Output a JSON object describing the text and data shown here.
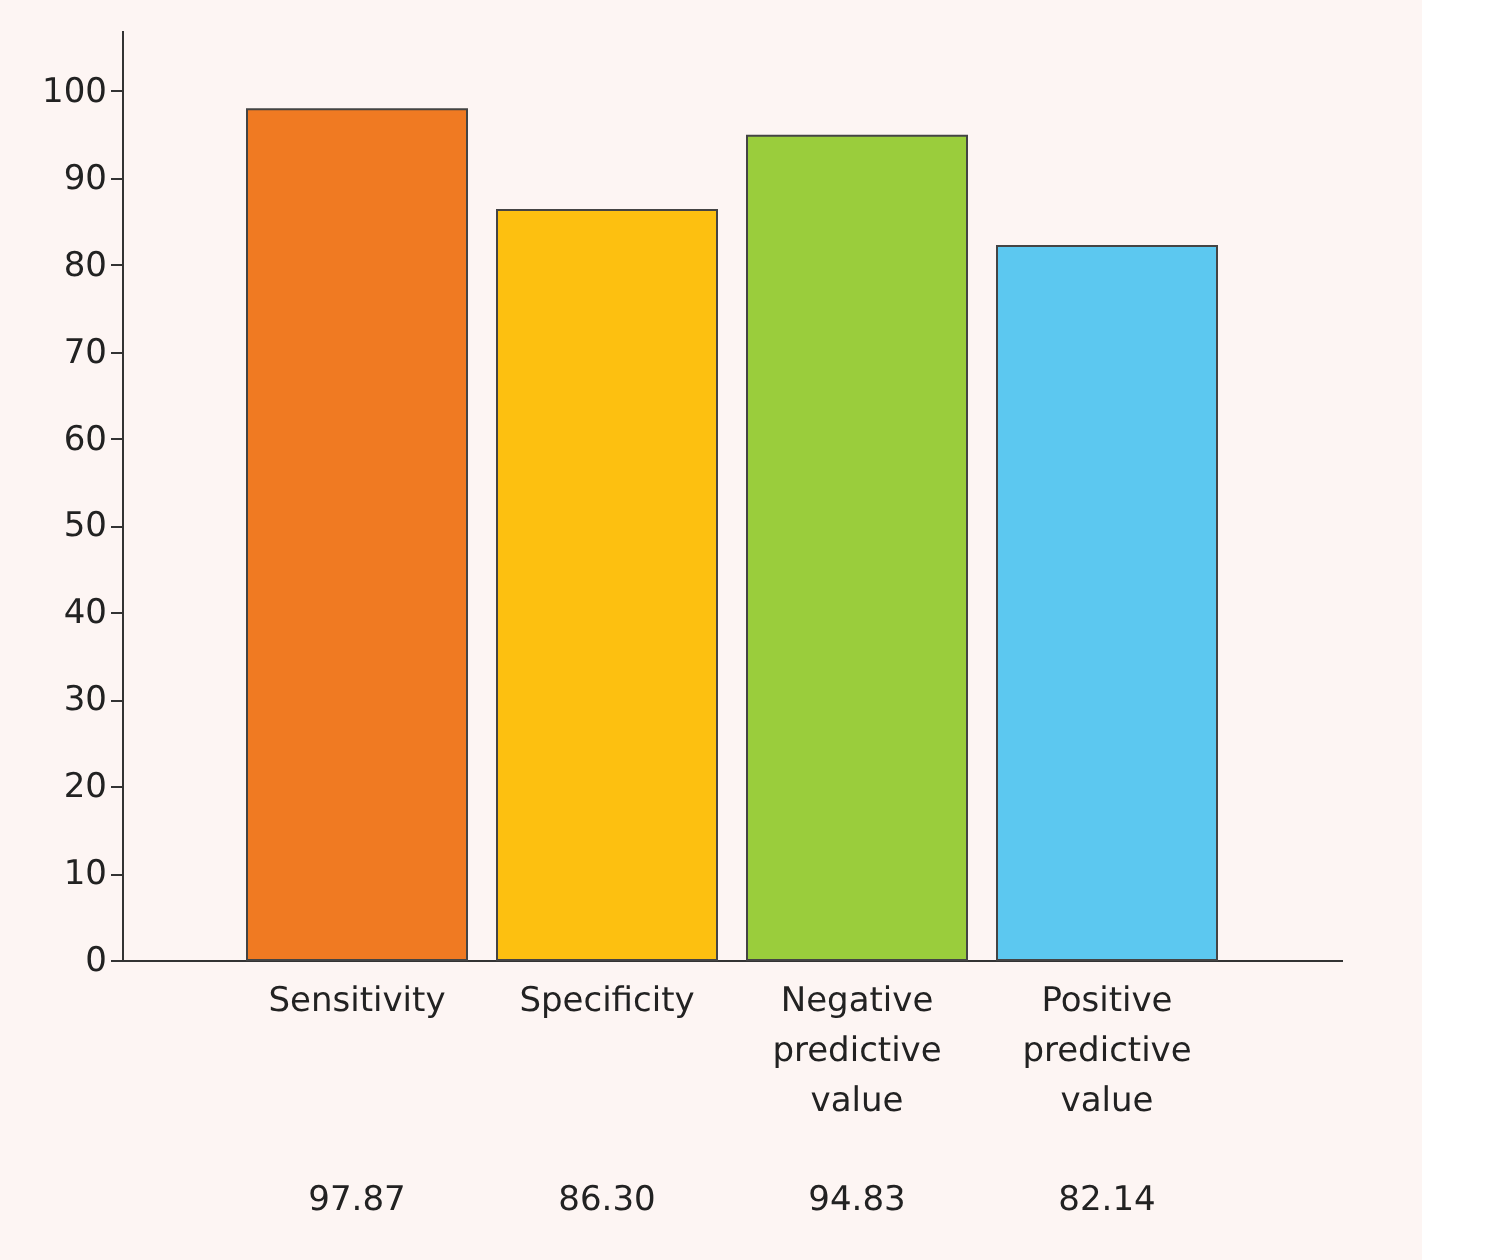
{
  "chart_data": {
    "type": "bar",
    "categories": [
      "Sensitivity",
      "Specificity",
      "Negative predictive value",
      "Positive predictive value"
    ],
    "values": [
      97.87,
      86.3,
      94.83,
      82.14
    ],
    "colors": [
      "#f07a22",
      "#fdc010",
      "#9acd3c",
      "#5cc8f0"
    ],
    "value_labels": [
      "97.87",
      "86.30",
      "94.83",
      "82.14"
    ],
    "ylim": [
      0,
      107
    ],
    "yticks": [
      0,
      10,
      20,
      30,
      40,
      50,
      60,
      70,
      80,
      90,
      100
    ],
    "grid": false
  }
}
